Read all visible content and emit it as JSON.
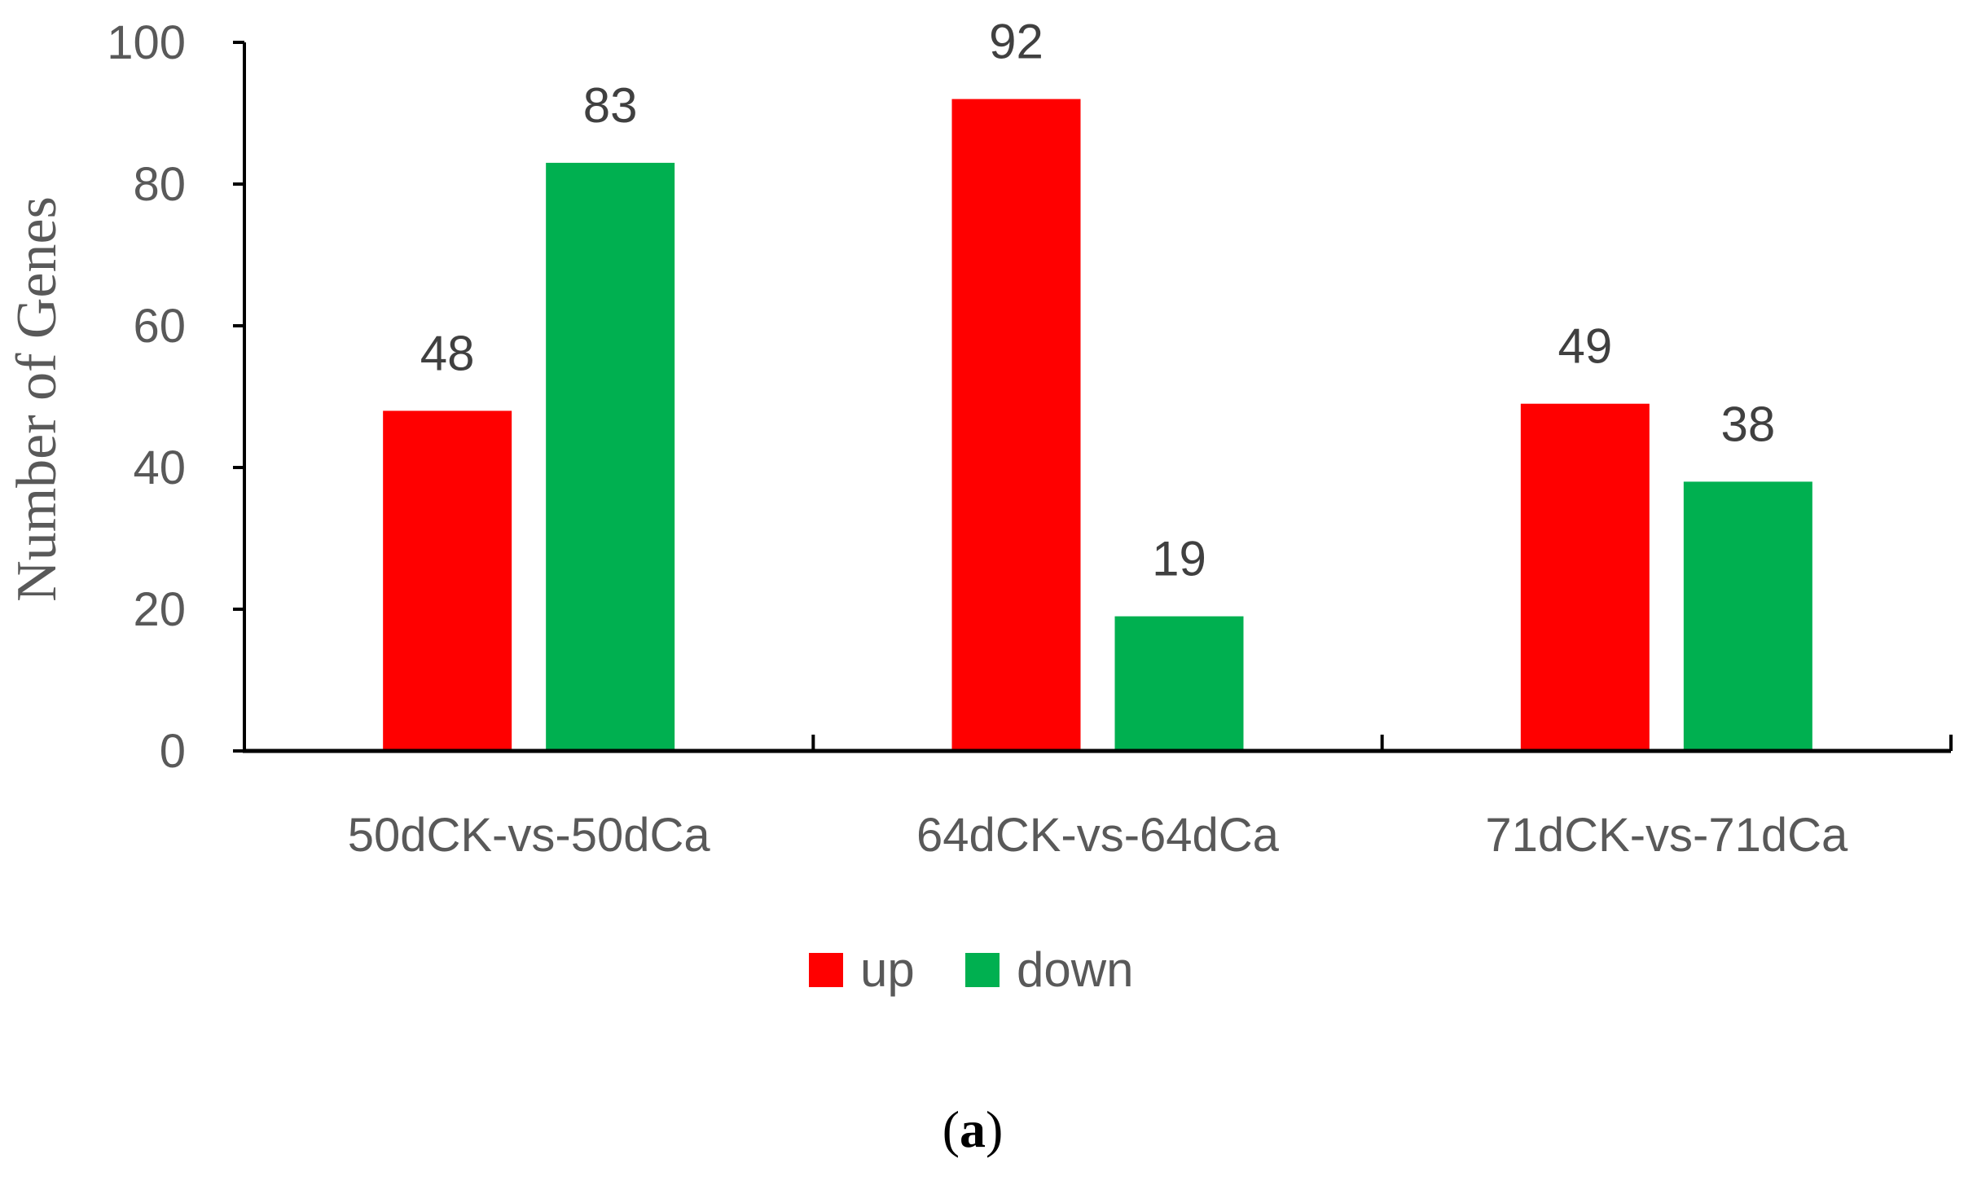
{
  "chart_data": {
    "type": "bar",
    "categories": [
      "50dCK-vs-50dCa",
      "64dCK-vs-64dCa",
      "71dCK-vs-71dCa"
    ],
    "series": [
      {
        "name": "up",
        "values": [
          48,
          92,
          49
        ],
        "color": "#ff0000"
      },
      {
        "name": "down",
        "values": [
          83,
          19,
          38
        ],
        "color": "#00b050"
      }
    ],
    "ylabel": "Number of Genes",
    "xlabel": "",
    "ylim": [
      0,
      100
    ],
    "yticks": [
      0,
      20,
      40,
      60,
      80,
      100
    ],
    "grid": false,
    "legend": "bottom-center",
    "data_labels": true
  },
  "caption": {
    "open": "(",
    "letter": "a",
    "close": ")"
  }
}
